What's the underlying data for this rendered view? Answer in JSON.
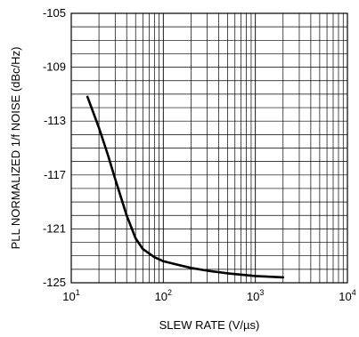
{
  "chart_data": {
    "type": "line",
    "xlabel": "SLEW RATE (V/µs)",
    "ylabel": "PLL NORMALIZED 1/f NOISE (dBc/Hz)",
    "xscale": "log",
    "xlim": [
      10,
      10000
    ],
    "ylim": [
      -125,
      -105
    ],
    "grid": true,
    "x_ticks": [
      {
        "base": "10",
        "exp": "1",
        "value": 10
      },
      {
        "base": "10",
        "exp": "2",
        "value": 100
      },
      {
        "base": "10",
        "exp": "3",
        "value": 1000
      },
      {
        "base": "10",
        "exp": "4",
        "value": 10000
      }
    ],
    "y_ticks": [
      {
        "label": "-105",
        "value": -105
      },
      {
        "label": "-109",
        "value": -109
      },
      {
        "label": "-113",
        "value": -113
      },
      {
        "label": "-117",
        "value": -117
      },
      {
        "label": "-121",
        "value": -121
      },
      {
        "label": "-125",
        "value": -125
      }
    ],
    "series": [
      {
        "x": [
          15,
          20,
          25,
          30,
          40,
          50,
          60,
          80,
          100,
          150,
          200,
          300,
          500,
          1000,
          2000
        ],
        "y": [
          -111.2,
          -113.5,
          -115.5,
          -117.3,
          -120.0,
          -121.7,
          -122.5,
          -123.1,
          -123.4,
          -123.7,
          -123.9,
          -124.1,
          -124.3,
          -124.5,
          -124.6
        ]
      }
    ],
    "colors": {
      "line": "#000000",
      "grid": "#000000",
      "background": "#ffffff"
    }
  }
}
